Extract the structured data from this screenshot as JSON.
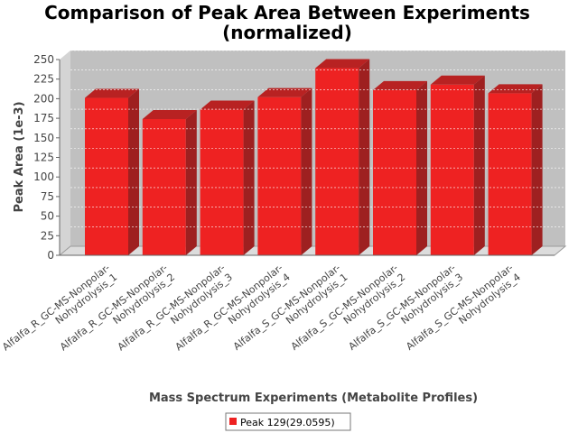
{
  "chart_data": {
    "type": "bar",
    "title_lines": [
      "Comparison of Peak Area Between Experiments",
      "(normalized)"
    ],
    "xlabel": "Mass Spectrum Experiments (Metabolite Profiles)",
    "ylabel": "Peak Area (1e-3)",
    "ylim": [
      0,
      250
    ],
    "yticks": [
      0,
      25,
      50,
      75,
      100,
      125,
      150,
      175,
      200,
      225,
      250
    ],
    "grid": true,
    "legend_position": "bottom",
    "categories": [
      [
        "Alfalfa_R_GC-MS-Nonpolar-",
        "Nohydrolysis_1"
      ],
      [
        "Alfalfa_R_GC-MS-Nonpolar-",
        "Nohydrolysis_2"
      ],
      [
        "Alfalfa_R_GC-MS-Nonpolar-",
        "Nohydrolysis_3"
      ],
      [
        "Alfalfa_R_GC-MS-Nonpolar-",
        "Nohydrolysis_4"
      ],
      [
        "Alfalfa_S_GC-MS-Nonpolar-",
        "Nohydrolysis_1"
      ],
      [
        "Alfalfa_S_GC-MS-Nonpolar-",
        "Nohydrolysis_2"
      ],
      [
        "Alfalfa_S_GC-MS-Nonpolar-",
        "Nohydrolysis_3"
      ],
      [
        "Alfalfa_S_GC-MS-Nonpolar-",
        "Nohydrolysis_4"
      ]
    ],
    "series": [
      {
        "name": "Peak 129(29.0595)",
        "color": "#ee2222",
        "values": [
          201,
          174,
          186,
          202,
          239,
          211,
          218,
          207
        ]
      }
    ]
  }
}
